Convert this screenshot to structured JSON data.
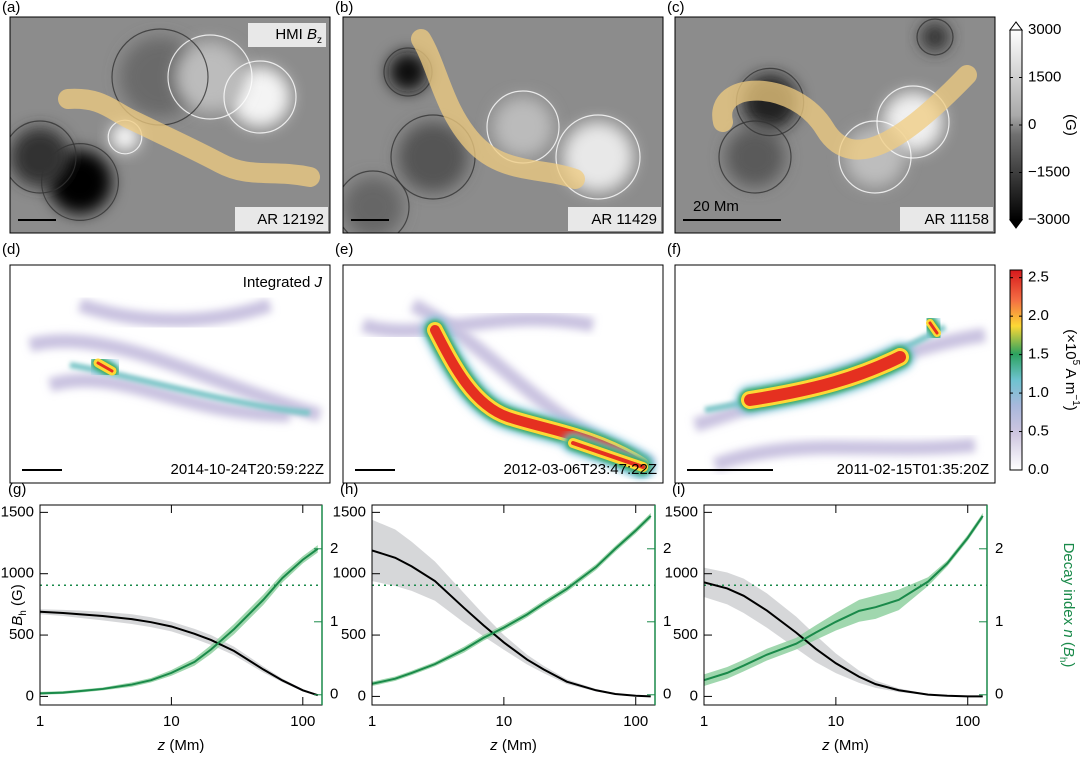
{
  "magnetograms": [
    {
      "label": "(a)",
      "region": "AR 12192",
      "annotation": [
        {
          "text": "HMI "
        },
        {
          "text": "B",
          "italic": true
        },
        {
          "text": "z",
          "sub": true
        }
      ]
    },
    {
      "label": "(b)",
      "region": "AR 11429"
    },
    {
      "label": "(c)",
      "region": "AR 11158",
      "scale_label": "20 Mm"
    }
  ],
  "current_maps": [
    {
      "label": "(d)",
      "time": "2014-10-24T20:59:22Z",
      "annotation": [
        {
          "text": "Integrated "
        },
        {
          "text": "J",
          "italic": true
        }
      ]
    },
    {
      "label": "(e)",
      "time": "2012-03-06T23:47:22Z"
    },
    {
      "label": "(f)",
      "time": "2011-02-15T01:35:20Z"
    }
  ],
  "colorbars": [
    {
      "lim": [
        -3000,
        3000
      ],
      "ticks": [
        3000,
        1500,
        0,
        {
          "value": -1500,
          "label": "−1500"
        },
        {
          "value": -3000,
          "label": "−3000"
        }
      ],
      "label": [
        {
          "text": "(G)"
        }
      ]
    },
    {
      "lim": [
        0,
        2.6
      ],
      "ticks": [
        2.5,
        {
          "value": 2,
          "label": "2.0"
        },
        1.5,
        {
          "value": 1,
          "label": "1.0"
        },
        0.5,
        {
          "value": 0,
          "label": "0.0"
        }
      ],
      "label": [
        {
          "text": "(×10"
        },
        {
          "text": "5",
          "sup": true
        },
        {
          "text": " A m"
        },
        {
          "text": "−1",
          "sup": true
        },
        {
          "text": ")"
        }
      ]
    }
  ],
  "chart_data": [
    {
      "type": "line",
      "label": "(g)",
      "log_x": true,
      "x": [
        1,
        1.5,
        2,
        3,
        5,
        7,
        10,
        15,
        20,
        30,
        50,
        70,
        100,
        130
      ],
      "xlim": [
        1,
        140
      ],
      "xticks": [
        1,
        10,
        100
      ],
      "ylim": [
        -70,
        1560
      ],
      "yticks": [
        0,
        500,
        1000,
        1500
      ],
      "y2lim": [
        -0.14,
        2.6
      ],
      "y2ticks": [
        0,
        1,
        2
      ],
      "xlabel": [
        {
          "text": "z",
          "italic": true
        },
        {
          "text": " (Mm)"
        }
      ],
      "ylabel": [
        {
          "text": "B",
          "italic": true
        },
        {
          "text": "h",
          "sub": true
        },
        {
          "text": " (G)"
        }
      ],
      "hline": {
        "value": 1.5,
        "axis": "y2",
        "color": "#1a8a4a"
      },
      "series": [
        {
          "color": "#000000",
          "band_color": "#cfd0d2",
          "values": [
            690,
            680,
            670,
            655,
            630,
            605,
            570,
            510,
            460,
            370,
            220,
            130,
            50,
            10
          ],
          "errors": [
            20,
            25,
            30,
            35,
            40,
            40,
            40,
            40,
            40,
            35,
            25,
            15,
            10,
            5
          ]
        },
        {
          "axis": "y2",
          "color": "#1a8a4a",
          "band_color": "#8fd0a0",
          "values": [
            0.02,
            0.03,
            0.05,
            0.08,
            0.14,
            0.2,
            0.3,
            0.45,
            0.62,
            0.9,
            1.3,
            1.6,
            1.85,
            2.0
          ],
          "errors": [
            0.02,
            0.02,
            0.02,
            0.02,
            0.03,
            0.03,
            0.04,
            0.05,
            0.06,
            0.07,
            0.07,
            0.06,
            0.05,
            0.05
          ]
        }
      ]
    },
    {
      "type": "line",
      "label": "(h)",
      "log_x": true,
      "x": [
        1,
        1.5,
        2,
        3,
        5,
        7,
        10,
        15,
        20,
        30,
        50,
        70,
        100,
        130
      ],
      "xlim": [
        1,
        140
      ],
      "xticks": [
        1,
        10,
        100
      ],
      "ylim": [
        -70,
        1560
      ],
      "yticks": [
        0,
        500,
        1000,
        1500
      ],
      "y2lim": [
        -0.14,
        2.6
      ],
      "y2ticks": [
        0,
        1,
        2
      ],
      "xlabel": [
        {
          "text": "z",
          "italic": true
        },
        {
          "text": " (Mm)"
        }
      ],
      "hline": {
        "value": 1.5,
        "axis": "y2",
        "color": "#1a8a4a"
      },
      "series": [
        {
          "color": "#000000",
          "band_color": "#cfd0d2",
          "values": [
            1190,
            1130,
            1060,
            940,
            720,
            580,
            440,
            300,
            220,
            120,
            50,
            20,
            5,
            0
          ],
          "errors": [
            250,
            230,
            200,
            160,
            120,
            90,
            60,
            40,
            30,
            20,
            10,
            5,
            3,
            2
          ]
        },
        {
          "axis": "y2",
          "color": "#1a8a4a",
          "band_color": "#8fd0a0",
          "values": [
            0.15,
            0.22,
            0.3,
            0.42,
            0.62,
            0.78,
            0.92,
            1.1,
            1.25,
            1.45,
            1.75,
            2.0,
            2.25,
            2.45
          ],
          "errors": [
            0.03,
            0.03,
            0.03,
            0.03,
            0.04,
            0.04,
            0.04,
            0.04,
            0.04,
            0.04,
            0.04,
            0.04,
            0.04,
            0.04
          ]
        }
      ]
    },
    {
      "type": "line",
      "label": "(i)",
      "log_x": true,
      "x": [
        1,
        1.5,
        2,
        3,
        5,
        7,
        10,
        15,
        20,
        30,
        50,
        70,
        100,
        130
      ],
      "xlim": [
        1,
        140
      ],
      "xticks": [
        1,
        10,
        100
      ],
      "ylim": [
        -70,
        1560
      ],
      "yticks": [
        0,
        500,
        1000,
        1500
      ],
      "y2lim": [
        -0.14,
        2.6
      ],
      "y2ticks": [
        0,
        1,
        2
      ],
      "xlabel": [
        {
          "text": "z",
          "italic": true
        },
        {
          "text": " (Mm)"
        }
      ],
      "y2label": [
        {
          "text": "Decay index "
        },
        {
          "text": "n",
          "italic": true
        },
        {
          "text": " ("
        },
        {
          "text": "B",
          "italic": true
        },
        {
          "text": "h",
          "sub": true
        },
        {
          "text": ")"
        }
      ],
      "hline": {
        "value": 1.5,
        "axis": "y2",
        "color": "#1a8a4a"
      },
      "series": [
        {
          "color": "#000000",
          "band_color": "#cfd0d2",
          "values": [
            930,
            880,
            820,
            700,
            520,
            390,
            270,
            160,
            100,
            50,
            15,
            5,
            0,
            0
          ],
          "errors": [
            120,
            130,
            140,
            140,
            130,
            110,
            80,
            50,
            30,
            15,
            5,
            3,
            1,
            1
          ]
        },
        {
          "axis": "y2",
          "color": "#1a8a4a",
          "band_color": "#8fd0a0",
          "values": [
            0.2,
            0.3,
            0.4,
            0.55,
            0.7,
            0.85,
            1.0,
            1.15,
            1.2,
            1.3,
            1.55,
            1.8,
            2.15,
            2.45
          ],
          "errors": [
            0.08,
            0.08,
            0.08,
            0.08,
            0.08,
            0.1,
            0.12,
            0.15,
            0.16,
            0.14,
            0.06,
            0.04,
            0.04,
            0.04
          ]
        }
      ]
    }
  ]
}
